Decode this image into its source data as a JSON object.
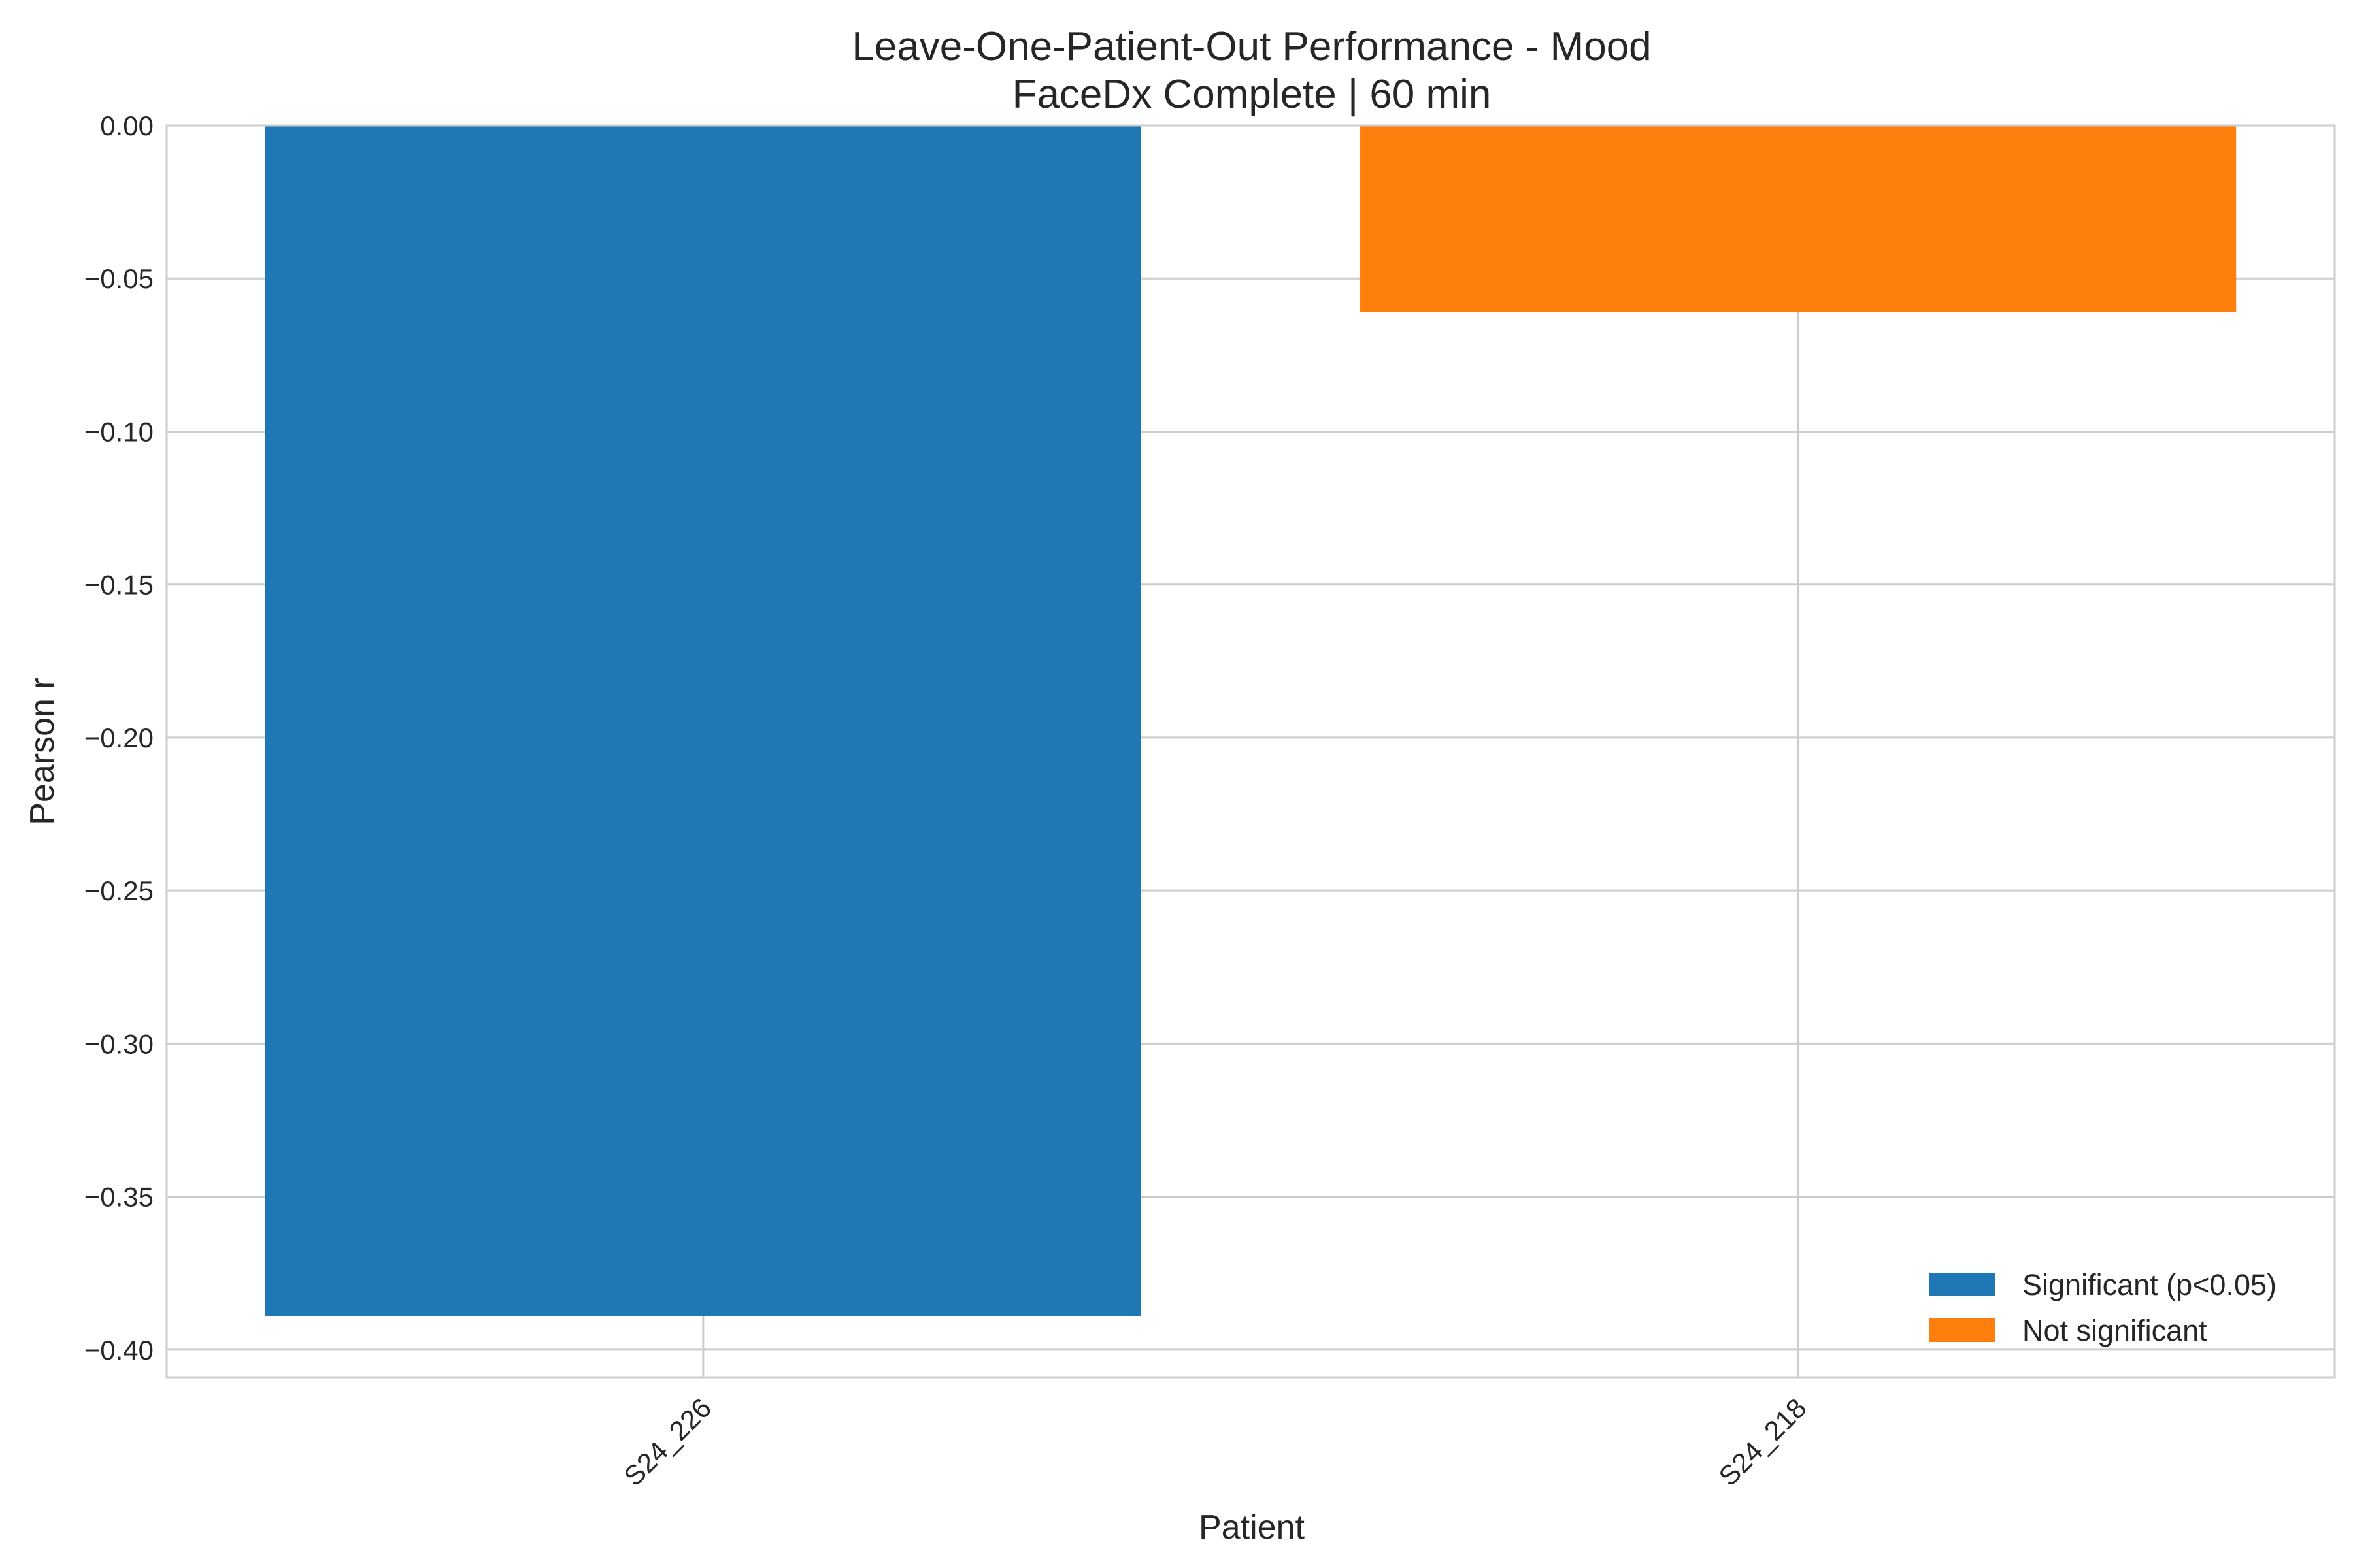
{
  "chart_data": {
    "type": "bar",
    "title": "Leave-One-Patient-Out Performance - Mood",
    "subtitle": "FaceDx Complete | 60 min",
    "xlabel": "Patient",
    "ylabel": "Pearson r",
    "categories": [
      "S24_226",
      "S24_218"
    ],
    "values": [
      -0.389,
      -0.061
    ],
    "significance": [
      "Significant (p<0.05)",
      "Not significant"
    ],
    "ylim": [
      -0.409,
      0.0
    ],
    "yticks": [
      0.0,
      -0.05,
      -0.1,
      -0.15,
      -0.2,
      -0.25,
      -0.3,
      -0.35,
      -0.4
    ],
    "ytick_labels": [
      "0.00",
      "−0.05",
      "−0.10",
      "−0.15",
      "−0.20",
      "−0.25",
      "−0.30",
      "−0.35",
      "−0.40"
    ],
    "grid": true,
    "legend_position": "bottom-right",
    "legend": [
      {
        "label": "Significant (p<0.05)",
        "color": "#1f77b4"
      },
      {
        "label": "Not significant",
        "color": "#ff7f0e"
      }
    ]
  }
}
